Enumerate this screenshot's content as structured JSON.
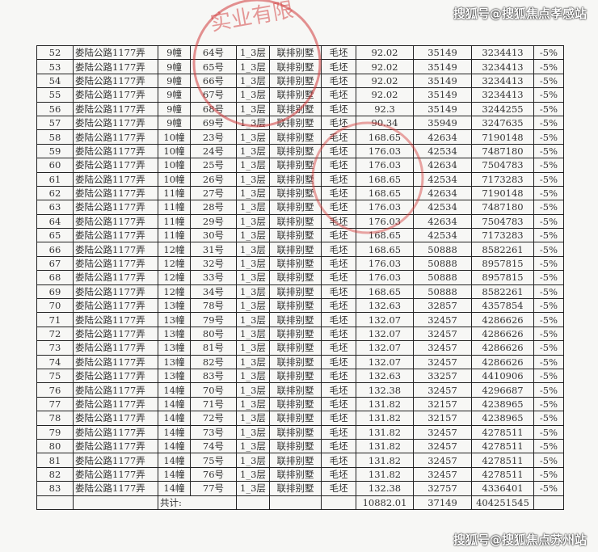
{
  "watermarks": [
    "搜狐号@搜狐焦点孝感站",
    "搜狐号@搜狐焦点苏州站"
  ],
  "stamp": {
    "text": "实业有限",
    "color": "#d23a3a"
  },
  "rows": [
    [
      "52",
      "娄陆公路1177弄",
      "9幢",
      "64号",
      "1_3层",
      "联排别墅",
      "毛坯",
      "92.02",
      "35149",
      "3234413",
      "-5%"
    ],
    [
      "53",
      "娄陆公路1177弄",
      "9幢",
      "65号",
      "1_3层",
      "联排别墅",
      "毛坯",
      "92.02",
      "35149",
      "3234413",
      "-5%"
    ],
    [
      "54",
      "娄陆公路1177弄",
      "9幢",
      "66号",
      "1_3层",
      "联排别墅",
      "毛坯",
      "92.02",
      "35149",
      "3234413",
      "-5%"
    ],
    [
      "55",
      "娄陆公路1177弄",
      "9幢",
      "67号",
      "1_3层",
      "联排别墅",
      "毛坯",
      "92.02",
      "35149",
      "3234413",
      "-5%"
    ],
    [
      "56",
      "娄陆公路1177弄",
      "9幢",
      "68号",
      "1_3层",
      "联排别墅",
      "毛坯",
      "92.3",
      "35149",
      "3244255",
      "-5%"
    ],
    [
      "57",
      "娄陆公路1177弄",
      "9幢",
      "69号",
      "1_3层",
      "联排别墅",
      "毛坯",
      "90.34",
      "35949",
      "3247635",
      "-5%"
    ],
    [
      "58",
      "娄陆公路1177弄",
      "10幢",
      "23号",
      "1_3层",
      "联排别墅",
      "毛坯",
      "168.65",
      "42634",
      "7190148",
      "-5%"
    ],
    [
      "59",
      "娄陆公路1177弄",
      "10幢",
      "24号",
      "1_3层",
      "联排别墅",
      "毛坯",
      "176.03",
      "42534",
      "7487180",
      "-5%"
    ],
    [
      "60",
      "娄陆公路1177弄",
      "10幢",
      "25号",
      "1_3层",
      "联排别墅",
      "毛坯",
      "176.03",
      "42634",
      "7504783",
      "-5%"
    ],
    [
      "61",
      "娄陆公路1177弄",
      "10幢",
      "26号",
      "1_3层",
      "联排别墅",
      "毛坯",
      "168.65",
      "42534",
      "7173283",
      "-5%"
    ],
    [
      "62",
      "娄陆公路1177弄",
      "11幢",
      "27号",
      "1_3层",
      "联排别墅",
      "毛坯",
      "168.65",
      "42634",
      "7190148",
      "-5%"
    ],
    [
      "63",
      "娄陆公路1177弄",
      "11幢",
      "28号",
      "1_3层",
      "联排别墅",
      "毛坯",
      "176.03",
      "42534",
      "7487180",
      "-5%"
    ],
    [
      "64",
      "娄陆公路1177弄",
      "11幢",
      "29号",
      "1_3层",
      "联排别墅",
      "毛坯",
      "176.03",
      "42634",
      "7504783",
      "-5%"
    ],
    [
      "65",
      "娄陆公路1177弄",
      "11幢",
      "30号",
      "1_3层",
      "联排别墅",
      "毛坯",
      "168.65",
      "42534",
      "7173283",
      "-5%"
    ],
    [
      "66",
      "娄陆公路1177弄",
      "12幢",
      "31号",
      "1_3层",
      "联排别墅",
      "毛坯",
      "168.65",
      "50888",
      "8582261",
      "-5%"
    ],
    [
      "67",
      "娄陆公路1177弄",
      "12幢",
      "32号",
      "1_3层",
      "联排别墅",
      "毛坯",
      "176.03",
      "50888",
      "8957815",
      "-5%"
    ],
    [
      "68",
      "娄陆公路1177弄",
      "12幢",
      "33号",
      "1_3层",
      "联排别墅",
      "毛坯",
      "176.03",
      "50888",
      "8957815",
      "-5%"
    ],
    [
      "69",
      "娄陆公路1177弄",
      "12幢",
      "34号",
      "1_3层",
      "联排别墅",
      "毛坯",
      "168.65",
      "50888",
      "8582261",
      "-5%"
    ],
    [
      "70",
      "娄陆公路1177弄",
      "13幢",
      "78号",
      "1_3层",
      "联排别墅",
      "毛坯",
      "132.63",
      "32857",
      "4357854",
      "-5%"
    ],
    [
      "71",
      "娄陆公路1177弄",
      "13幢",
      "79号",
      "1_3层",
      "联排别墅",
      "毛坯",
      "132.07",
      "32457",
      "4286626",
      "-5%"
    ],
    [
      "72",
      "娄陆公路1177弄",
      "13幢",
      "80号",
      "1_3层",
      "联排别墅",
      "毛坯",
      "132.07",
      "32457",
      "4286626",
      "-5%"
    ],
    [
      "73",
      "娄陆公路1177弄",
      "13幢",
      "81号",
      "1_3层",
      "联排别墅",
      "毛坯",
      "132.07",
      "32457",
      "4286626",
      "-5%"
    ],
    [
      "74",
      "娄陆公路1177弄",
      "13幢",
      "82号",
      "1_3层",
      "联排别墅",
      "毛坯",
      "132.07",
      "32457",
      "4286626",
      "-5%"
    ],
    [
      "75",
      "娄陆公路1177弄",
      "13幢",
      "83号",
      "1_3层",
      "联排别墅",
      "毛坯",
      "132.63",
      "33257",
      "4410906",
      "-5%"
    ],
    [
      "76",
      "娄陆公路1177弄",
      "14幢",
      "70号",
      "1_3层",
      "联排别墅",
      "毛坯",
      "132.38",
      "32457",
      "4296687",
      "-5%"
    ],
    [
      "77",
      "娄陆公路1177弄",
      "14幢",
      "71号",
      "1_3层",
      "联排别墅",
      "毛坯",
      "131.82",
      "32157",
      "4238965",
      "-5%"
    ],
    [
      "78",
      "娄陆公路1177弄",
      "14幢",
      "72号",
      "1_3层",
      "联排别墅",
      "毛坯",
      "131.82",
      "32157",
      "4238965",
      "-5%"
    ],
    [
      "79",
      "娄陆公路1177弄",
      "14幢",
      "73号",
      "1_3层",
      "联排别墅",
      "毛坯",
      "131.82",
      "32457",
      "4278511",
      "-5%"
    ],
    [
      "80",
      "娄陆公路1177弄",
      "14幢",
      "74号",
      "1_3层",
      "联排别墅",
      "毛坯",
      "131.82",
      "32457",
      "4278511",
      "-5%"
    ],
    [
      "81",
      "娄陆公路1177弄",
      "14幢",
      "75号",
      "1_3层",
      "联排别墅",
      "毛坯",
      "131.82",
      "32457",
      "4278511",
      "-5%"
    ],
    [
      "82",
      "娄陆公路1177弄",
      "14幢",
      "76号",
      "1_3层",
      "联排别墅",
      "毛坯",
      "131.82",
      "32457",
      "4278511",
      "-5%"
    ],
    [
      "83",
      "娄陆公路1177弄",
      "14幢",
      "77号",
      "1_3层",
      "联排别墅",
      "毛坯",
      "132.38",
      "32757",
      "4336401",
      "-5%"
    ]
  ],
  "total": {
    "label": "共计:",
    "area": "10882.01",
    "price": "37149",
    "amount": "404251545"
  }
}
